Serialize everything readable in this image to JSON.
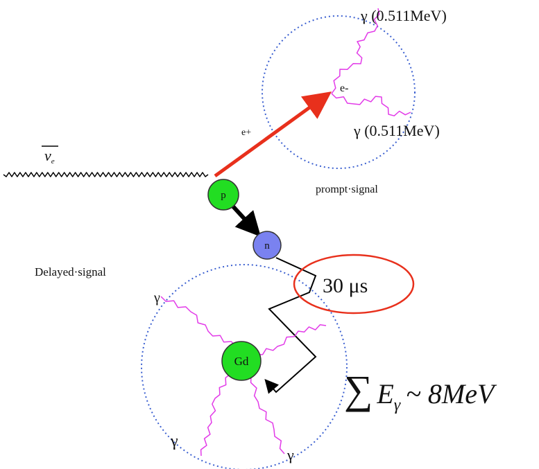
{
  "labels": {
    "gamma_top": "γ (0.511MeV)",
    "electron": "e-",
    "positron": "e+",
    "gamma_right": "γ (0.511MeV)",
    "prompt_signal": "prompt·signal",
    "delayed_signal": "Delayed·signal",
    "time": "30 μs",
    "gamma_gd_top": "γ",
    "gamma_gd_bottom_left": "γ",
    "gamma_gd_bottom_right": "γ"
  },
  "antineutrino": {
    "symbol": "ν",
    "subscript": "e"
  },
  "nodes": {
    "proton": "p",
    "neutron": "n",
    "gadolinium": "Gd"
  },
  "energy_sum": {
    "sum": "∑",
    "symbol": "E",
    "subscript": "γ",
    "rest": "~ 8MeV"
  }
}
